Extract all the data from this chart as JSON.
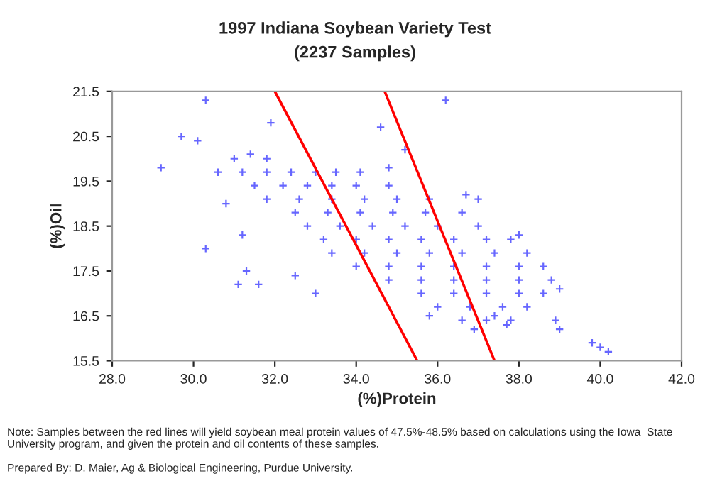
{
  "chart_data": {
    "type": "scatter",
    "title": "1997 Indiana Soybean Variety Test",
    "subtitle": "(2237 Samples)",
    "xlabel": "(%)Protein",
    "ylabel": "(%)Oil",
    "xlim": [
      28,
      42
    ],
    "ylim": [
      15.5,
      21.5
    ],
    "xticks": [
      {
        "value": 28,
        "label": "28.0"
      },
      {
        "value": 30,
        "label": "30.0"
      },
      {
        "value": 32,
        "label": "32.0"
      },
      {
        "value": 34,
        "label": "34.0"
      },
      {
        "value": 36,
        "label": "36.0"
      },
      {
        "value": 38,
        "label": "38.0"
      },
      {
        "value": 40,
        "label": "40.0"
      },
      {
        "value": 42,
        "label": "42.0"
      }
    ],
    "yticks": [
      {
        "value": 15.5,
        "label": "15.5"
      },
      {
        "value": 16.5,
        "label": "16.5"
      },
      {
        "value": 17.5,
        "label": "17.5"
      },
      {
        "value": 18.5,
        "label": "18.5"
      },
      {
        "value": 19.5,
        "label": "19.5"
      },
      {
        "value": 20.5,
        "label": "20.5"
      },
      {
        "value": 21.5,
        "label": "21.5"
      }
    ],
    "grid": false,
    "legend": false,
    "marker": "cross",
    "series": [
      {
        "color": "#6666ff",
        "x": [
          30.3,
          29.2,
          30.3,
          31.9,
          29.7,
          33.0,
          31.1,
          31.6,
          31.3,
          32.5,
          31.2,
          30.8,
          30.1,
          36.2,
          34.6,
          35.2,
          34.1,
          34.8,
          38.0,
          39.0,
          38.9,
          39.0,
          39.8,
          40.0,
          40.2,
          36.9,
          35.8,
          37.4,
          37.7,
          36.7,
          37.0,
          31.0,
          31.4,
          31.8,
          30.6,
          31.2,
          31.8,
          32.4,
          33.0,
          33.5,
          31.5,
          32.2,
          32.8,
          33.4,
          34.0,
          34.8,
          31.8,
          32.6,
          33.4,
          34.2,
          35.0,
          35.8,
          32.5,
          33.3,
          34.1,
          34.9,
          35.7,
          36.6,
          32.8,
          33.6,
          34.4,
          35.2,
          36.0,
          37.0,
          33.2,
          34.0,
          34.8,
          35.6,
          36.4,
          37.2,
          37.8,
          33.4,
          34.2,
          35.0,
          35.8,
          36.6,
          37.4,
          38.2,
          34.0,
          34.8,
          35.6,
          36.4,
          37.2,
          38.0,
          38.6,
          34.8,
          35.6,
          36.4,
          37.2,
          38.0,
          38.8,
          35.6,
          36.4,
          37.2,
          38.0,
          38.6,
          36.0,
          36.8,
          37.6,
          38.2,
          36.6,
          37.2,
          37.8
        ],
        "values": [
          21.3,
          19.8,
          18.0,
          20.8,
          20.5,
          17.0,
          17.2,
          17.2,
          17.5,
          17.4,
          18.3,
          19.0,
          20.4,
          21.3,
          20.7,
          20.2,
          19.7,
          19.8,
          18.3,
          17.1,
          16.4,
          16.2,
          15.9,
          15.8,
          15.7,
          16.2,
          16.5,
          16.5,
          16.3,
          19.2,
          19.1,
          20.0,
          20.1,
          20.0,
          19.7,
          19.7,
          19.7,
          19.7,
          19.7,
          19.7,
          19.4,
          19.4,
          19.4,
          19.4,
          19.4,
          19.4,
          19.1,
          19.1,
          19.1,
          19.1,
          19.1,
          19.1,
          18.8,
          18.8,
          18.8,
          18.8,
          18.8,
          18.8,
          18.5,
          18.5,
          18.5,
          18.5,
          18.5,
          18.5,
          18.2,
          18.2,
          18.2,
          18.2,
          18.2,
          18.2,
          18.2,
          17.9,
          17.9,
          17.9,
          17.9,
          17.9,
          17.9,
          17.9,
          17.6,
          17.6,
          17.6,
          17.6,
          17.6,
          17.6,
          17.6,
          17.3,
          17.3,
          17.3,
          17.3,
          17.3,
          17.3,
          17.0,
          17.0,
          17.0,
          17.0,
          17.0,
          16.7,
          16.7,
          16.7,
          16.7,
          16.4,
          16.4,
          16.4
        ]
      },
      {
        "type": "line",
        "color": "#ff0000",
        "marker": "none",
        "x": [
          32.0,
          35.5
        ],
        "values": [
          21.5,
          15.5
        ]
      },
      {
        "type": "line",
        "color": "#ff0000",
        "marker": "none",
        "x": [
          34.7,
          37.4
        ],
        "values": [
          21.5,
          15.5
        ]
      }
    ],
    "annotations": [
      "Note: Samples between the red lines will yield soybean meal protein values of 47.5%-48.5% based on calculations using the Iowa  State University program, and given the protein and oil contents of these samples.",
      "Prepared By: D. Maier, Ag & Biological Engineering, Purdue University."
    ]
  }
}
